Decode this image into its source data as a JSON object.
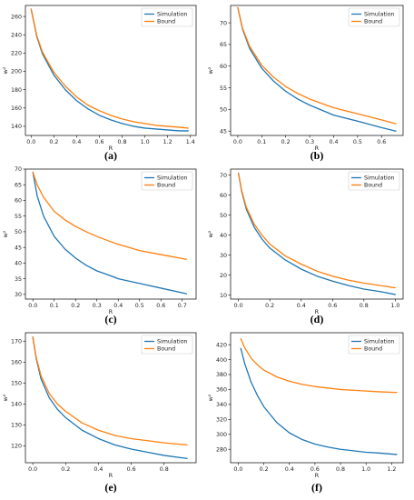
{
  "colors": {
    "simulation": "#1f77b4",
    "bound": "#ff7f0e",
    "axis": "#000000",
    "legend_frame": "#cccccc"
  },
  "chart_data": [
    {
      "type": "line",
      "caption": "(a)",
      "xlabel": "R",
      "ylabel": "w²",
      "xlim": [
        -0.05,
        1.45
      ],
      "ylim": [
        130,
        272
      ],
      "xticks": [
        "0.0",
        "0.2",
        "0.4",
        "0.6",
        "0.8",
        "1.0",
        "1.2",
        "1.4"
      ],
      "xtick_values": [
        0.0,
        0.2,
        0.4,
        0.6,
        0.8,
        1.0,
        1.2,
        1.4
      ],
      "yticks": [
        "140",
        "160",
        "180",
        "200",
        "220",
        "240",
        "260"
      ],
      "ytick_values": [
        140,
        160,
        180,
        200,
        220,
        240,
        260
      ],
      "legend_position": "top-right",
      "series": [
        {
          "name": "Simulation",
          "x": [
            0.0,
            0.05,
            0.1,
            0.2,
            0.3,
            0.4,
            0.5,
            0.6,
            0.7,
            0.8,
            0.9,
            1.0,
            1.1,
            1.2,
            1.3,
            1.38
          ],
          "y": [
            268,
            238,
            219,
            196,
            180,
            168,
            159,
            152,
            147,
            143,
            140,
            138,
            137,
            136,
            135,
            135
          ]
        },
        {
          "name": "Bound",
          "x": [
            0.0,
            0.05,
            0.1,
            0.2,
            0.3,
            0.4,
            0.5,
            0.6,
            0.7,
            0.8,
            0.9,
            1.0,
            1.1,
            1.2,
            1.3,
            1.38
          ],
          "y": [
            268,
            239,
            221,
            199,
            184,
            172,
            163,
            157,
            152,
            148,
            145,
            143,
            141,
            140,
            139,
            138
          ]
        }
      ]
    },
    {
      "type": "line",
      "caption": "(b)",
      "xlabel": "R",
      "ylabel": "w²",
      "xlim": [
        -0.03,
        0.69
      ],
      "ylim": [
        44,
        74
      ],
      "xticks": [
        "0.0",
        "0.1",
        "0.2",
        "0.3",
        "0.4",
        "0.5",
        "0.6"
      ],
      "xtick_values": [
        0.0,
        0.1,
        0.2,
        0.3,
        0.4,
        0.5,
        0.6
      ],
      "yticks": [
        "45",
        "50",
        "55",
        "60",
        "65",
        "70"
      ],
      "ytick_values": [
        45,
        50,
        55,
        60,
        65,
        70
      ],
      "legend_position": "top-right",
      "series": [
        {
          "name": "Simulation",
          "x": [
            0.0,
            0.02,
            0.05,
            0.1,
            0.15,
            0.2,
            0.25,
            0.3,
            0.4,
            0.5,
            0.6,
            0.66
          ],
          "y": [
            73.5,
            68.5,
            64,
            59.5,
            56.5,
            54.2,
            52.4,
            51,
            48.7,
            47.3,
            45.8,
            45
          ]
        },
        {
          "name": "Bound",
          "x": [
            0.0,
            0.02,
            0.05,
            0.1,
            0.15,
            0.2,
            0.25,
            0.3,
            0.4,
            0.5,
            0.6,
            0.66
          ],
          "y": [
            73.5,
            68.7,
            64.5,
            60.2,
            57.4,
            55.3,
            53.7,
            52.4,
            50.4,
            49,
            47.6,
            46.7
          ]
        }
      ]
    },
    {
      "type": "line",
      "caption": "(c)",
      "xlabel": "R",
      "ylabel": "w²",
      "xlim": [
        -0.035,
        0.765
      ],
      "ylim": [
        28.5,
        70
      ],
      "xticks": [
        "0.0",
        "0.1",
        "0.2",
        "0.3",
        "0.4",
        "0.5",
        "0.6",
        "0.7"
      ],
      "xtick_values": [
        0.0,
        0.1,
        0.2,
        0.3,
        0.4,
        0.5,
        0.6,
        0.7
      ],
      "yticks": [
        "30",
        "35",
        "40",
        "45",
        "50",
        "55",
        "60",
        "65",
        "70"
      ],
      "ytick_values": [
        30,
        35,
        40,
        45,
        50,
        55,
        60,
        65,
        70
      ],
      "legend_position": "top-right",
      "series": [
        {
          "name": "Simulation",
          "x": [
            0.0,
            0.02,
            0.05,
            0.1,
            0.15,
            0.2,
            0.25,
            0.3,
            0.35,
            0.4,
            0.5,
            0.6,
            0.72
          ],
          "y": [
            69,
            61.5,
            55,
            48.5,
            44.5,
            41.6,
            39.3,
            37.5,
            36.3,
            35,
            33.5,
            32,
            30.2
          ]
        },
        {
          "name": "Bound",
          "x": [
            0.0,
            0.02,
            0.05,
            0.1,
            0.15,
            0.2,
            0.25,
            0.3,
            0.35,
            0.4,
            0.5,
            0.6,
            0.72
          ],
          "y": [
            69,
            65,
            61,
            56.5,
            53.8,
            51.7,
            50,
            48.5,
            47.2,
            46,
            44,
            42.7,
            41.2
          ]
        }
      ]
    },
    {
      "type": "line",
      "caption": "(d)",
      "xlabel": "R",
      "ylabel": "w²",
      "xlim": [
        -0.05,
        1.05
      ],
      "ylim": [
        8,
        73
      ],
      "xticks": [
        "0.0",
        "0.2",
        "0.4",
        "0.6",
        "0.8",
        "1.0"
      ],
      "xtick_values": [
        0.0,
        0.2,
        0.4,
        0.6,
        0.8,
        1.0
      ],
      "yticks": [
        "10",
        "20",
        "30",
        "40",
        "50",
        "60",
        "70"
      ],
      "ytick_values": [
        10,
        20,
        30,
        40,
        50,
        60,
        70
      ],
      "legend_position": "top-right",
      "series": [
        {
          "name": "Simulation",
          "x": [
            0.0,
            0.02,
            0.05,
            0.1,
            0.15,
            0.2,
            0.3,
            0.4,
            0.5,
            0.6,
            0.7,
            0.8,
            0.9,
            1.0
          ],
          "y": [
            71,
            62,
            53,
            44,
            38,
            33.5,
            27.5,
            23,
            19.5,
            17,
            14.8,
            13,
            11.8,
            10.3
          ]
        },
        {
          "name": "Bound",
          "x": [
            0.0,
            0.02,
            0.05,
            0.1,
            0.15,
            0.2,
            0.3,
            0.4,
            0.5,
            0.6,
            0.7,
            0.8,
            0.9,
            1.0
          ],
          "y": [
            71,
            62.5,
            54,
            45.5,
            40,
            35.5,
            29.5,
            25.5,
            22,
            19.5,
            17.5,
            16,
            14.8,
            13.7
          ]
        }
      ]
    },
    {
      "type": "line",
      "caption": "(e)",
      "xlabel": "R",
      "ylabel": "w²",
      "xlim": [
        -0.045,
        0.995
      ],
      "ylim": [
        112,
        174
      ],
      "xticks": [
        "0.0",
        "0.2",
        "0.4",
        "0.6",
        "0.8"
      ],
      "xtick_values": [
        0.0,
        0.2,
        0.4,
        0.6,
        0.8
      ],
      "yticks": [
        "120",
        "130",
        "140",
        "150",
        "160",
        "170"
      ],
      "ytick_values": [
        120,
        130,
        140,
        150,
        160,
        170
      ],
      "legend_position": "top-right",
      "series": [
        {
          "name": "Simulation",
          "x": [
            0.0,
            0.02,
            0.05,
            0.1,
            0.15,
            0.2,
            0.3,
            0.4,
            0.5,
            0.6,
            0.7,
            0.8,
            0.94
          ],
          "y": [
            172,
            162,
            152,
            143,
            137.5,
            133.5,
            127.5,
            123.5,
            120.5,
            118.5,
            117,
            115.5,
            114
          ]
        },
        {
          "name": "Bound",
          "x": [
            0.0,
            0.02,
            0.05,
            0.1,
            0.15,
            0.2,
            0.3,
            0.4,
            0.5,
            0.6,
            0.7,
            0.8,
            0.94
          ],
          "y": [
            172,
            162.5,
            153.5,
            145,
            140,
            136.5,
            131,
            127.5,
            125,
            123.5,
            122.5,
            121.5,
            120.5
          ]
        }
      ]
    },
    {
      "type": "line",
      "caption": "(f)",
      "xlabel": "R",
      "ylabel": "w²",
      "xlim": [
        -0.06,
        1.29
      ],
      "ylim": [
        262,
        436
      ],
      "xticks": [
        "0.0",
        "0.2",
        "0.4",
        "0.6",
        "0.8",
        "1.0",
        "1.2"
      ],
      "xtick_values": [
        0.0,
        0.2,
        0.4,
        0.6,
        0.8,
        1.0,
        1.2
      ],
      "yticks": [
        "280",
        "300",
        "320",
        "340",
        "360",
        "380",
        "400",
        "420"
      ],
      "ytick_values": [
        280,
        300,
        320,
        340,
        360,
        380,
        400,
        420
      ],
      "legend_position": "top-right",
      "series": [
        {
          "name": "Simulation",
          "x": [
            0.02,
            0.05,
            0.1,
            0.15,
            0.2,
            0.3,
            0.4,
            0.5,
            0.6,
            0.7,
            0.8,
            0.9,
            1.0,
            1.1,
            1.24
          ],
          "y": [
            415,
            395,
            370,
            352,
            337,
            316,
            302,
            293,
            287,
            283,
            280,
            278,
            276,
            275,
            273
          ]
        },
        {
          "name": "Bound",
          "x": [
            0.02,
            0.05,
            0.1,
            0.15,
            0.2,
            0.3,
            0.4,
            0.5,
            0.6,
            0.7,
            0.8,
            0.9,
            1.0,
            1.1,
            1.24
          ],
          "y": [
            428,
            416,
            402,
            393,
            386,
            377,
            371,
            367,
            364,
            362,
            360,
            359,
            358,
            357,
            356
          ]
        }
      ]
    }
  ]
}
